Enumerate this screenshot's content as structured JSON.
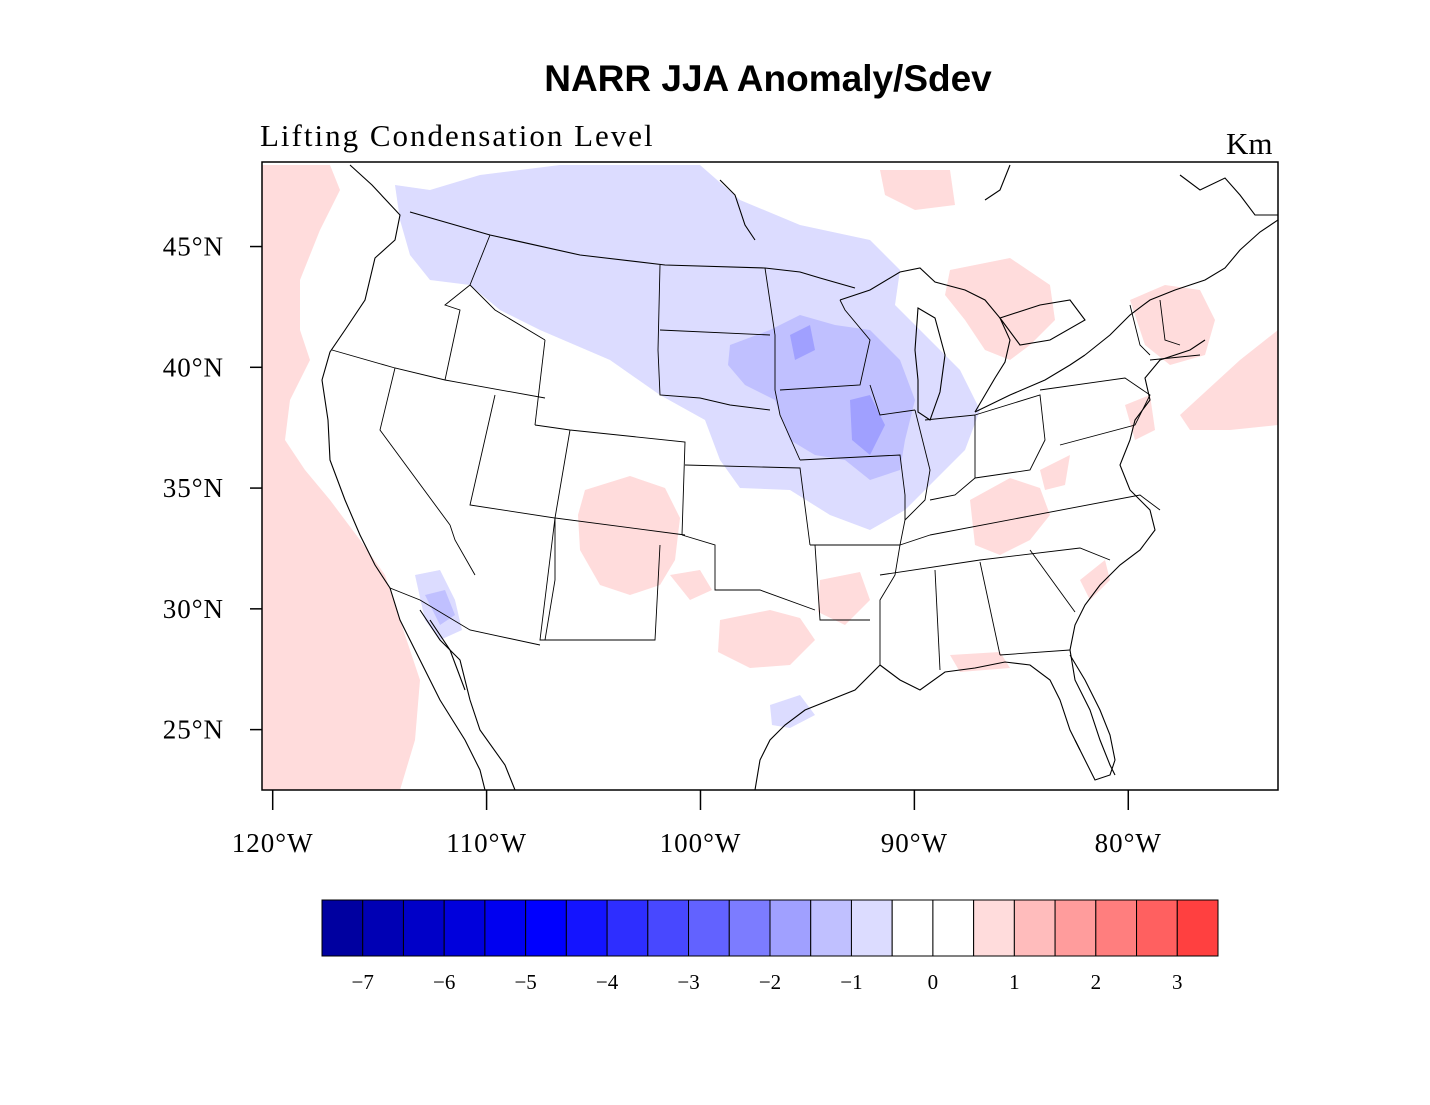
{
  "title": "NARR JJA Anomaly/Sdev",
  "subtitle_left": "Lifting Condensation Level",
  "subtitle_right": "Km",
  "lat_ticks": [
    "45°N",
    "40°N",
    "35°N",
    "30°N",
    "25°N"
  ],
  "lat_values": [
    45,
    40,
    35,
    30,
    25
  ],
  "lon_ticks": [
    "120°W",
    "110°W",
    "100°W",
    "90°W",
    "80°W"
  ],
  "lon_values": [
    -120,
    -110,
    -100,
    -90,
    -80
  ],
  "map_extent": {
    "lon_min": -120.5,
    "lon_max": -73,
    "lat_min": 22.5,
    "lat_max": 48.5
  },
  "colorbar": {
    "colors": [
      "#0000a0",
      "#0000b4",
      "#0000c8",
      "#0000dc",
      "#0000f0",
      "#0000ff",
      "#1414ff",
      "#2e2eff",
      "#4848ff",
      "#6262ff",
      "#7c7cff",
      "#a0a0ff",
      "#c0c0ff",
      "#dcdcff",
      "#ffffff",
      "#ffffff",
      "#ffdcdc",
      "#ffbcbc",
      "#ff9c9c",
      "#ff7e7e",
      "#ff6060",
      "#ff4040"
    ],
    "tick_labels": [
      "−7",
      "−6",
      "−5",
      "−4",
      "−3",
      "−2",
      "−1",
      "0",
      "1",
      "2",
      "3"
    ]
  }
}
